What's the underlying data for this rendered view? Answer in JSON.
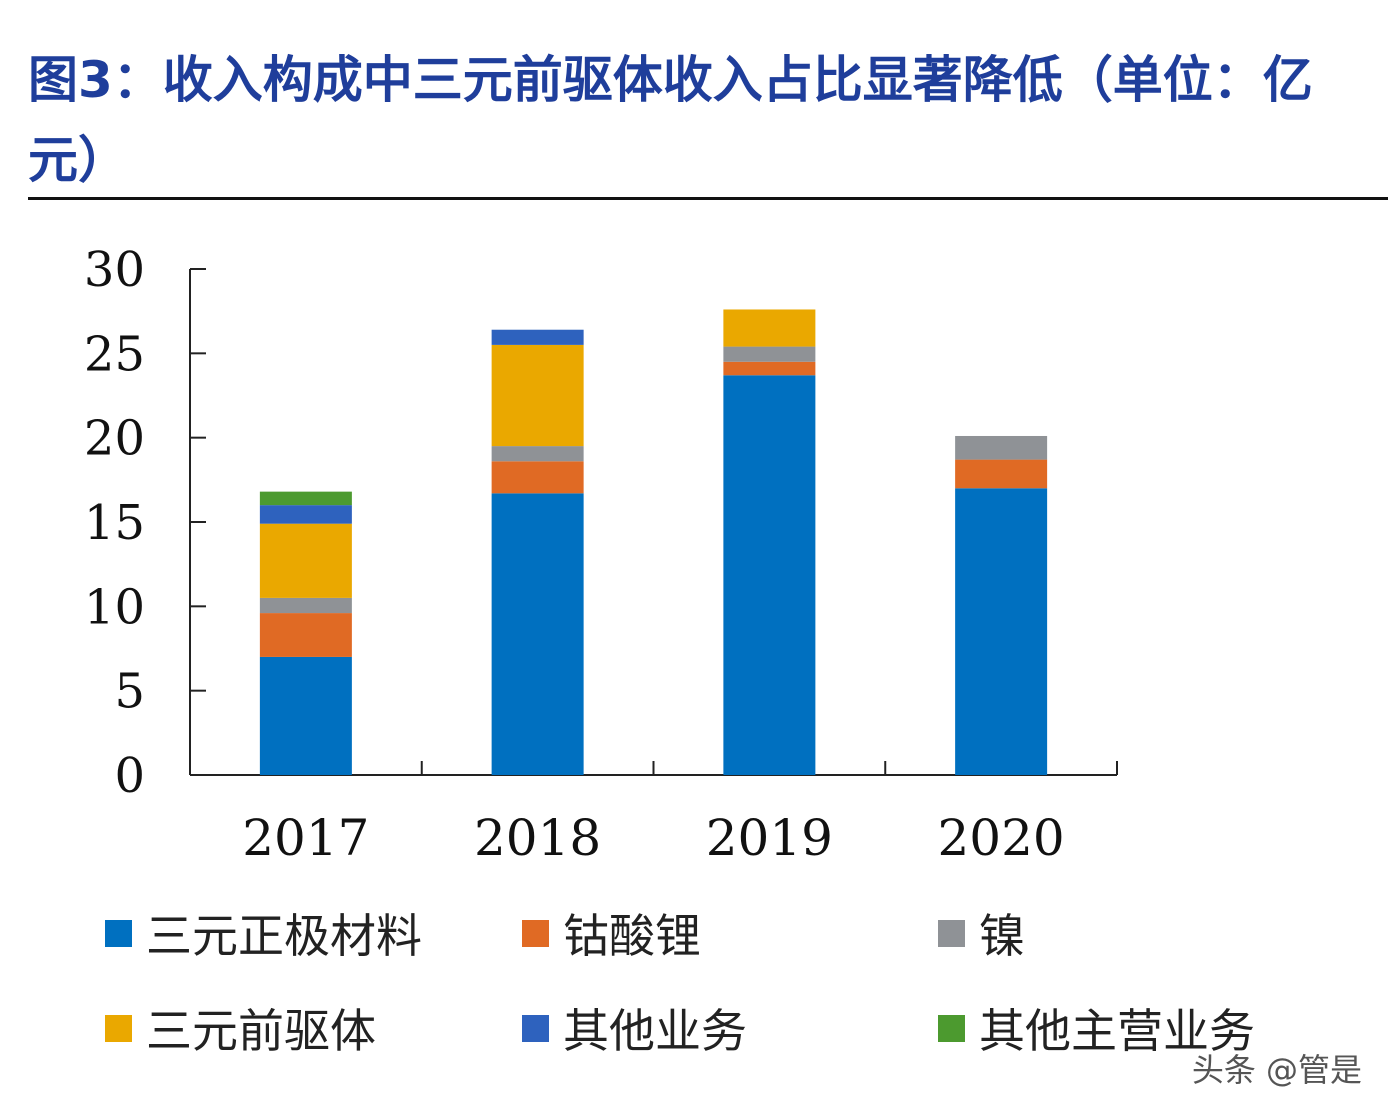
{
  "title": "图3：收入构成中三元前驱体收入占比显著降低（单位：亿元）",
  "watermark": "头条 @管是",
  "chart_data": {
    "type": "bar",
    "stacked": true,
    "title": "图3：收入构成中三元前驱体收入占比显著降低（单位：亿元）",
    "categories": [
      "2017",
      "2018",
      "2019",
      "2020"
    ],
    "ylim": [
      0,
      30
    ],
    "yticks": [
      0,
      5,
      10,
      15,
      20,
      25,
      30
    ],
    "grid": false,
    "legend_placement": "bottom",
    "series": [
      {
        "name": "三元正极材料",
        "color": "#0070c0",
        "values": [
          7.0,
          16.7,
          23.7,
          17.0
        ]
      },
      {
        "name": "钴酸锂",
        "color": "#e06a24",
        "values": [
          2.6,
          1.9,
          0.8,
          1.7
        ]
      },
      {
        "name": "镍",
        "color": "#8f9296",
        "values": [
          0.9,
          0.9,
          0.9,
          1.4
        ]
      },
      {
        "name": "三元前驱体",
        "color": "#eaa800",
        "values": [
          4.4,
          6.0,
          2.2,
          0
        ]
      },
      {
        "name": "其他业务",
        "color": "#2e62be",
        "values": [
          1.1,
          0.9,
          0,
          0
        ]
      },
      {
        "name": "其他主营业务",
        "color": "#4c9a2f",
        "values": [
          0.8,
          0,
          0,
          0
        ]
      }
    ]
  }
}
